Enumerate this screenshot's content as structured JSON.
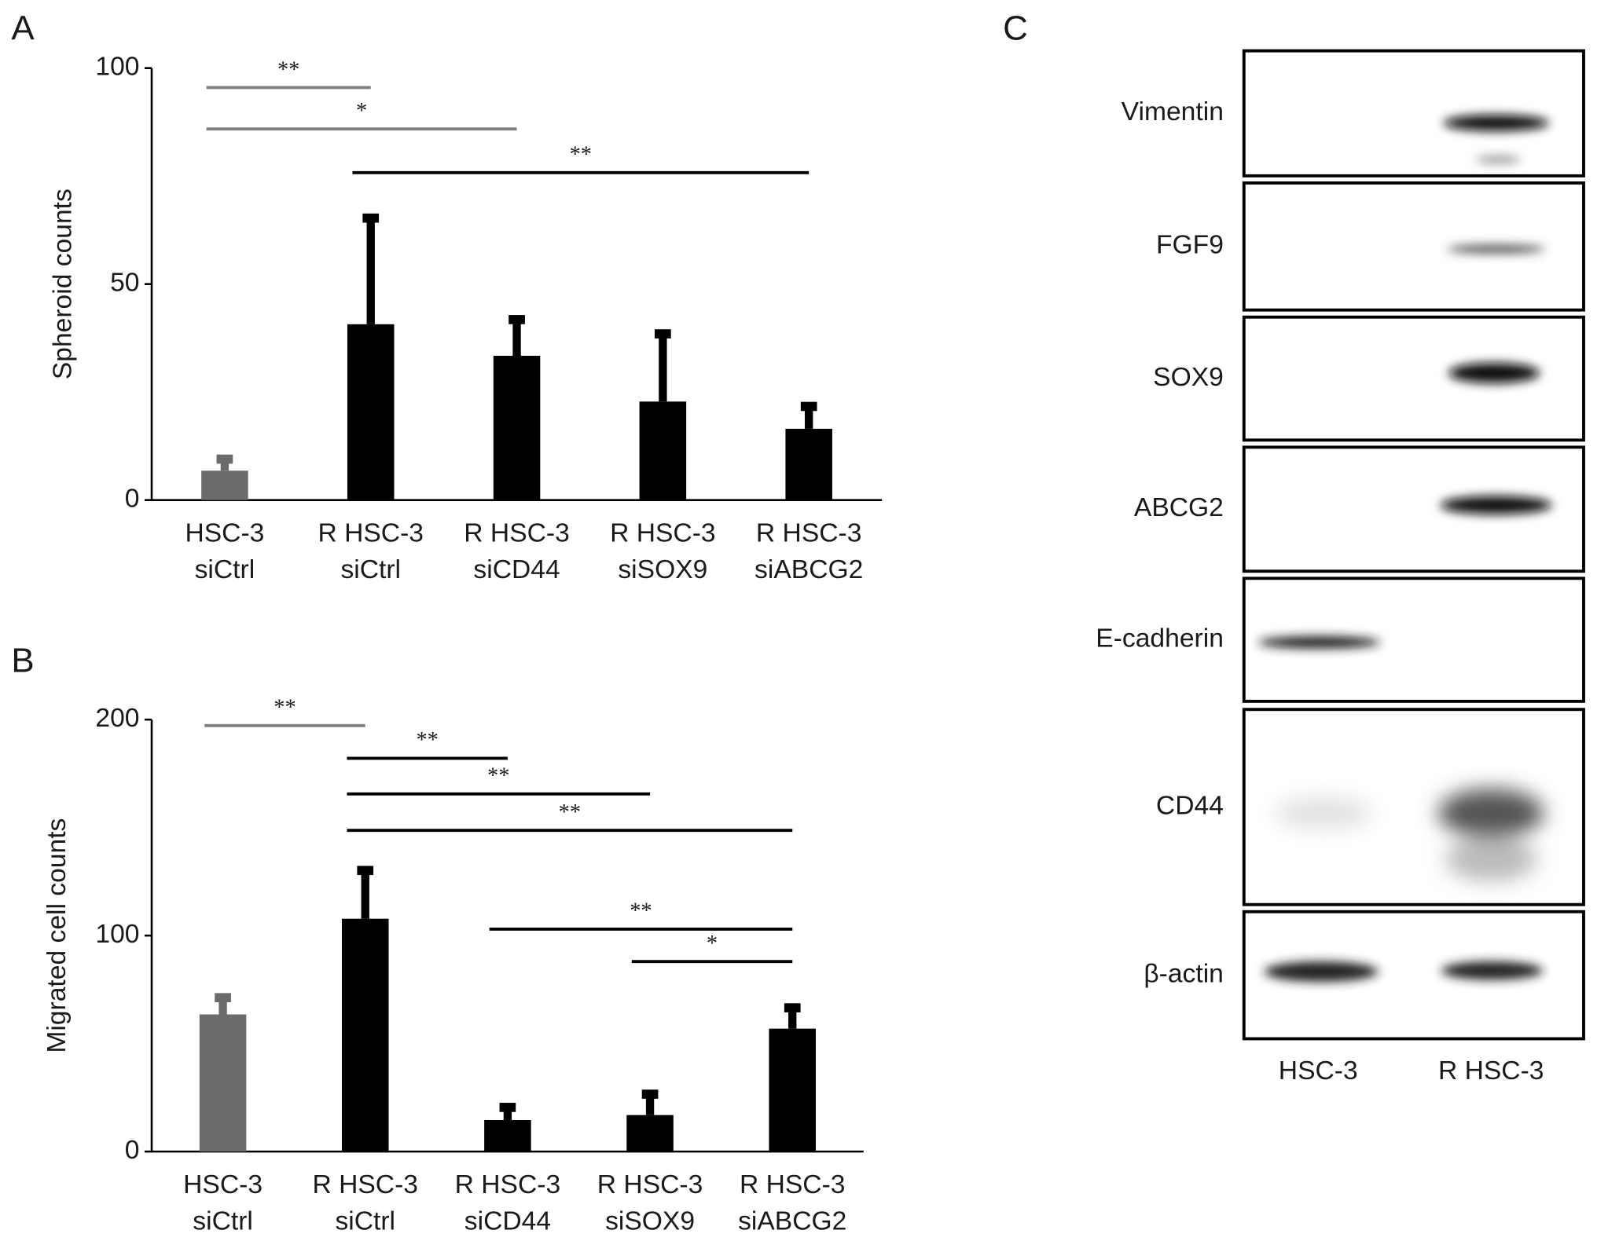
{
  "chart_data": [
    {
      "type": "bar",
      "panel_label": "A",
      "ylabel": "Spheroid counts",
      "categories": [
        [
          "HSC-3",
          "siCtrl"
        ],
        [
          "R HSC-3",
          "siCtrl"
        ],
        [
          "R HSC-3",
          "siCD44"
        ],
        [
          "R HSC-3",
          "siSOX9"
        ],
        [
          "R HSC-3",
          "siABCG2"
        ]
      ],
      "values": [
        6.8,
        40.7,
        33.4,
        22.8,
        16.5
      ],
      "errors": [
        3.5,
        25.4,
        9.2,
        16.5,
        6
      ],
      "colors": [
        "#6b6b6b",
        "#000000",
        "#000000",
        "#000000",
        "#000000"
      ],
      "ylim": [
        0,
        100
      ],
      "yticks": [
        0,
        50,
        100
      ],
      "significance": [
        {
          "from": 0,
          "to": 1,
          "y": 95.5,
          "label": "**",
          "color": "#808080"
        },
        {
          "from": 0,
          "to": 2,
          "y": 85.9,
          "label": "*",
          "color": "#808080"
        },
        {
          "from": 1,
          "to": 4,
          "y": 75.8,
          "label": "**",
          "color": "#000000"
        }
      ]
    },
    {
      "type": "bar",
      "panel_label": "B",
      "ylabel": "Migrated cell counts",
      "categories": [
        [
          "HSC-3",
          "siCtrl"
        ],
        [
          "R HSC-3",
          "siCtrl"
        ],
        [
          "R HSC-3",
          "siCD44"
        ],
        [
          "R HSC-3",
          "siSOX9"
        ],
        [
          "R HSC-3",
          "siABCG2"
        ]
      ],
      "values": [
        63.5,
        107.8,
        14.6,
        16.9,
        56.9
      ],
      "errors": [
        9.4,
        24,
        7.5,
        11.3,
        11.3
      ],
      "colors": [
        "#6b6b6b",
        "#000000",
        "#000000",
        "#000000",
        "#000000"
      ],
      "ylim": [
        0,
        200
      ],
      "yticks": [
        0,
        100,
        200
      ],
      "significance": [
        {
          "from": 0,
          "to": 1,
          "y": 197.2,
          "label": "**",
          "color": "#808080"
        },
        {
          "from": 1,
          "to": 2,
          "y": 182.1,
          "label": "**",
          "color": "#000000"
        },
        {
          "from": 1,
          "to": 3,
          "y": 165.6,
          "label": "**",
          "color": "#000000"
        },
        {
          "from": 1,
          "to": 4,
          "y": 148.7,
          "label": "**",
          "color": "#000000"
        },
        {
          "from": 2,
          "to": 4,
          "y": 103,
          "label": "**",
          "color": "#000000"
        },
        {
          "from": 3,
          "to": 4,
          "y": 88,
          "label": "*",
          "color": "#000000"
        }
      ]
    }
  ],
  "blot": {
    "panel_label": "C",
    "rows": [
      "Vimentin",
      "FGF9",
      "SOX9",
      "ABCG2",
      "E-cadherin",
      "CD44",
      "β-actin"
    ],
    "lanes": [
      "HSC-3",
      "R HSC-3"
    ]
  }
}
